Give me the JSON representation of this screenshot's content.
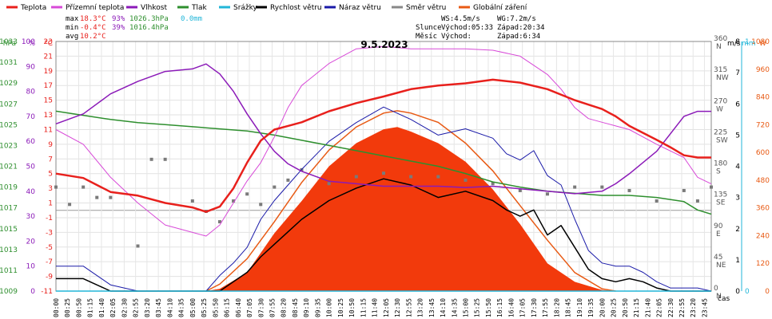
{
  "legend": [
    {
      "name": "Teplota",
      "color": "#e8201c"
    },
    {
      "name": "Přízemní teplota",
      "color": "#d84ad8"
    },
    {
      "name": "Vlhkost",
      "color": "#8b1ab8"
    },
    {
      "name": "Tlak",
      "color": "#2e8f2e"
    },
    {
      "name": "Srážky",
      "color": "#22b6d8"
    },
    {
      "name": "Rychlost větru",
      "color": "#000000"
    },
    {
      "name": "Náraz větru",
      "color": "#1a1aa8"
    },
    {
      "name": "Směr větru",
      "color": "#888888"
    },
    {
      "name": "Globální záření",
      "color": "#e85a14"
    }
  ],
  "stats": {
    "max_label": "max",
    "max_temp": "18.3°C",
    "max_hum": "93%",
    "max_press": "1026.3hPa",
    "max_rain": "0.0mm",
    "min_label": "min",
    "min_temp": "-0.4°C",
    "min_hum": "39%",
    "min_press": "1016.4hPa",
    "avg_label": "avg",
    "avg_temp": "10.2°C"
  },
  "astro": {
    "ws": "WS:4.5m/s",
    "wg": "WG:7.2m/s",
    "sun_label": "Slunce",
    "sun_rise": "Východ:05:33",
    "sun_set": "Západ:20:34",
    "moon_label": "Měsíc",
    "moon_rise": "Východ:",
    "moon_set": "Západ:6:34"
  },
  "chart_data": {
    "type": "line",
    "title": "9.5.2023",
    "xlabel": "čas",
    "x_ticks": [
      "00:00",
      "00:25",
      "00:50",
      "01:15",
      "01:40",
      "02:05",
      "02:30",
      "02:55",
      "03:20",
      "03:45",
      "04:10",
      "04:35",
      "05:00",
      "05:25",
      "05:50",
      "06:15",
      "06:40",
      "07:05",
      "07:30",
      "07:55",
      "08:20",
      "08:45",
      "09:10",
      "09:35",
      "10:00",
      "10:25",
      "10:50",
      "11:15",
      "11:40",
      "12:05",
      "12:30",
      "12:55",
      "13:20",
      "13:45",
      "14:10",
      "14:35",
      "15:00",
      "15:25",
      "15:50",
      "16:15",
      "16:40",
      "17:05",
      "17:30",
      "17:55",
      "18:20",
      "18:45",
      "19:10",
      "19:35",
      "20:00",
      "20:25",
      "20:50",
      "21:15",
      "21:40",
      "22:05",
      "22:30",
      "22:55",
      "23:20",
      "23:45"
    ],
    "axes": {
      "pressure": {
        "unit": "hPa",
        "range": [
          1009,
          1033
        ],
        "ticks": [
          1009,
          1011,
          1013,
          1015,
          1017,
          1019,
          1021,
          1023,
          1025,
          1027,
          1029,
          1031,
          1033
        ]
      },
      "humidity": {
        "unit": "%",
        "range": [
          0,
          100
        ],
        "ticks": [
          0,
          5,
          10,
          15,
          20,
          25,
          30,
          35,
          40,
          45,
          50,
          55,
          60,
          65,
          70,
          75,
          80,
          85,
          90,
          95,
          100
        ]
      },
      "temperature": {
        "unit": "°C",
        "range": [
          -11,
          23
        ],
        "ticks": [
          -11,
          -9,
          -7,
          -5,
          -3,
          -1,
          1,
          3,
          5,
          7,
          9,
          11,
          13,
          15,
          17,
          19,
          21,
          23
        ]
      },
      "wind_direction": {
        "range": [
          0,
          360
        ],
        "ticks": [
          "0 N",
          "45 NE",
          "90 E",
          "135 SE",
          "180 S",
          "225 SW",
          "270 W",
          "315 NW",
          "360 N"
        ]
      },
      "wind_speed": {
        "unit": "m/s",
        "range": [
          0,
          8
        ],
        "ticks": [
          0,
          1,
          2,
          3,
          4,
          5,
          6,
          7,
          8
        ]
      },
      "rain": {
        "unit": "mm",
        "range": [
          0,
          1
        ],
        "ticks": [
          0,
          1
        ]
      },
      "radiation": {
        "unit": "W",
        "range": [
          0,
          1080
        ],
        "ticks": [
          0,
          120,
          240,
          360,
          480,
          600,
          720,
          840,
          960,
          1080
        ]
      }
    },
    "series": [
      {
        "name": "Teplota",
        "unit": "°C",
        "hours": [
          0,
          1,
          2,
          3,
          4,
          5,
          5.5,
          6,
          6.5,
          7,
          7.5,
          8,
          8.5,
          9,
          10,
          11,
          12,
          13,
          14,
          15,
          16,
          17,
          18,
          19,
          19.5,
          20,
          20.5,
          21,
          22,
          22.5,
          23,
          23.5,
          24
        ],
        "values": [
          5,
          4.4,
          2.5,
          2,
          1,
          0.4,
          -0.2,
          0.5,
          3,
          6.5,
          9.5,
          11,
          11.5,
          12,
          13.5,
          14.6,
          15.5,
          16.5,
          17,
          17.3,
          17.8,
          17.4,
          16.5,
          15,
          14.4,
          13.8,
          12.8,
          11.5,
          9.6,
          8.6,
          7.5,
          7.2,
          7.2
        ]
      },
      {
        "name": "Přízemní teplota",
        "unit": "°C",
        "hours": [
          0,
          1,
          2,
          3,
          4,
          5,
          5.5,
          6,
          6.5,
          7,
          7.5,
          8,
          8.5,
          9,
          10,
          11,
          12,
          13,
          14,
          15,
          16,
          17,
          18,
          18.5,
          19,
          19.5,
          20,
          20.5,
          21,
          22,
          23,
          23.5,
          24
        ],
        "values": [
          11,
          9,
          4.5,
          1,
          -2,
          -3,
          -3.5,
          -2,
          1,
          4,
          6.5,
          10,
          14,
          17,
          20,
          22,
          22.3,
          22,
          22,
          22,
          21.8,
          21,
          18.5,
          16.5,
          14,
          12.5,
          12,
          11.5,
          11,
          9,
          7.2,
          4.5,
          3.6
        ]
      },
      {
        "name": "Vlhkost",
        "unit": "%",
        "hours": [
          0,
          1,
          2,
          3,
          4,
          5,
          5.5,
          6,
          6.5,
          7,
          7.5,
          8,
          8.5,
          9,
          10,
          11,
          12,
          13,
          14,
          15,
          16,
          17,
          18,
          19,
          20,
          20.5,
          21,
          22,
          22.5,
          23,
          23.5,
          24
        ],
        "values": [
          67,
          71,
          79,
          84,
          88,
          89,
          91,
          87,
          80,
          71,
          63,
          56,
          51,
          48,
          44,
          43,
          42,
          42,
          42,
          41.5,
          42,
          41,
          40,
          39,
          40,
          43,
          47,
          56,
          63,
          70,
          72,
          72
        ]
      },
      {
        "name": "Tlak",
        "unit": "hPa",
        "hours": [
          0,
          1,
          2,
          3,
          4,
          5,
          6,
          7,
          8,
          9,
          10,
          11,
          12,
          13,
          14,
          15,
          16,
          17,
          18,
          19,
          20,
          21,
          22,
          23,
          23.5,
          24
        ],
        "values": [
          1026.3,
          1025.9,
          1025.5,
          1025.2,
          1025.0,
          1024.8,
          1024.6,
          1024.4,
          1024.0,
          1023.5,
          1023.0,
          1022.5,
          1022.0,
          1021.5,
          1021.0,
          1020.3,
          1019.5,
          1019.0,
          1018.6,
          1018.4,
          1018.2,
          1018.2,
          1018.0,
          1017.6,
          1016.8,
          1016.4
        ]
      },
      {
        "name": "Rychlost větru",
        "unit": "m/s",
        "hours": [
          0,
          1,
          2,
          3,
          4,
          5,
          5.5,
          6,
          6.5,
          7,
          7.5,
          8,
          8.5,
          9,
          10,
          11,
          12,
          13,
          14,
          15,
          16,
          16.5,
          17,
          17.5,
          18,
          18.5,
          19,
          19.5,
          20,
          20.5,
          21,
          21.5,
          22,
          22.5,
          23,
          23.5,
          24
        ],
        "values": [
          0.4,
          0.4,
          0,
          0,
          0,
          0,
          0,
          0,
          0.3,
          0.6,
          1.1,
          1.5,
          1.9,
          2.3,
          2.9,
          3.3,
          3.6,
          3.4,
          3.0,
          3.2,
          2.9,
          2.6,
          2.4,
          2.6,
          1.8,
          2.1,
          1.4,
          0.7,
          0.4,
          0.3,
          0.4,
          0.3,
          0.1,
          0,
          0,
          0,
          0
        ]
      },
      {
        "name": "Náraz větru",
        "unit": "m/s",
        "hours": [
          0,
          1,
          2,
          3,
          4,
          5,
          5.5,
          6,
          6.5,
          7,
          7.5,
          8,
          8.5,
          9,
          10,
          11,
          12,
          13,
          14,
          15,
          16,
          16.5,
          17,
          17.5,
          18,
          18.5,
          19,
          19.5,
          20,
          20.5,
          21,
          21.5,
          22,
          22.5,
          23,
          23.5,
          24
        ],
        "values": [
          0.8,
          0.8,
          0.2,
          0,
          0,
          0,
          0,
          0.5,
          0.9,
          1.4,
          2.3,
          2.9,
          3.4,
          3.9,
          4.8,
          5.4,
          5.9,
          5.5,
          5.0,
          5.2,
          4.9,
          4.4,
          4.2,
          4.5,
          3.7,
          3.4,
          2.3,
          1.3,
          0.9,
          0.8,
          0.8,
          0.6,
          0.3,
          0.1,
          0.1,
          0.1,
          0
        ]
      },
      {
        "name": "Globální záření",
        "unit": "W",
        "hours": [
          5.5,
          6,
          7,
          8,
          9,
          10,
          11,
          12,
          12.5,
          13,
          14,
          15,
          16,
          17,
          18,
          19,
          20,
          20.5
        ],
        "values": [
          0,
          30,
          140,
          300,
          470,
          610,
          710,
          770,
          780,
          770,
          730,
          640,
          520,
          370,
          220,
          80,
          10,
          0
        ]
      },
      {
        "name": "Globální záření (aktuální)",
        "unit": "W",
        "hours": [
          5.5,
          6,
          7,
          8,
          9,
          10,
          11,
          12,
          12.5,
          13,
          14,
          15,
          16,
          17,
          18,
          19,
          20,
          20.5
        ],
        "values": [
          0,
          10,
          80,
          250,
          390,
          540,
          640,
          700,
          710,
          690,
          640,
          560,
          440,
          290,
          120,
          40,
          5,
          0
        ]
      },
      {
        "name": "Směr větru",
        "unit": "°",
        "hours": [
          0,
          0.5,
          1,
          1.5,
          2,
          3,
          3.5,
          4,
          5,
          5.5,
          6,
          6.5,
          7,
          7.5,
          8,
          8.5,
          9,
          10,
          11,
          12,
          13,
          14,
          15,
          16,
          17,
          18,
          19,
          20,
          21,
          22,
          23,
          23.5,
          24
        ],
        "values": [
          150,
          125,
          150,
          135,
          135,
          65,
          190,
          190,
          130,
          115,
          100,
          130,
          140,
          125,
          150,
          160,
          175,
          155,
          165,
          170,
          165,
          165,
          160,
          155,
          145,
          140,
          150,
          150,
          145,
          130,
          145,
          130,
          150
        ]
      },
      {
        "name": "Srážky",
        "unit": "mm",
        "hours": [
          0,
          24
        ],
        "values": [
          0,
          0
        ]
      }
    ]
  }
}
